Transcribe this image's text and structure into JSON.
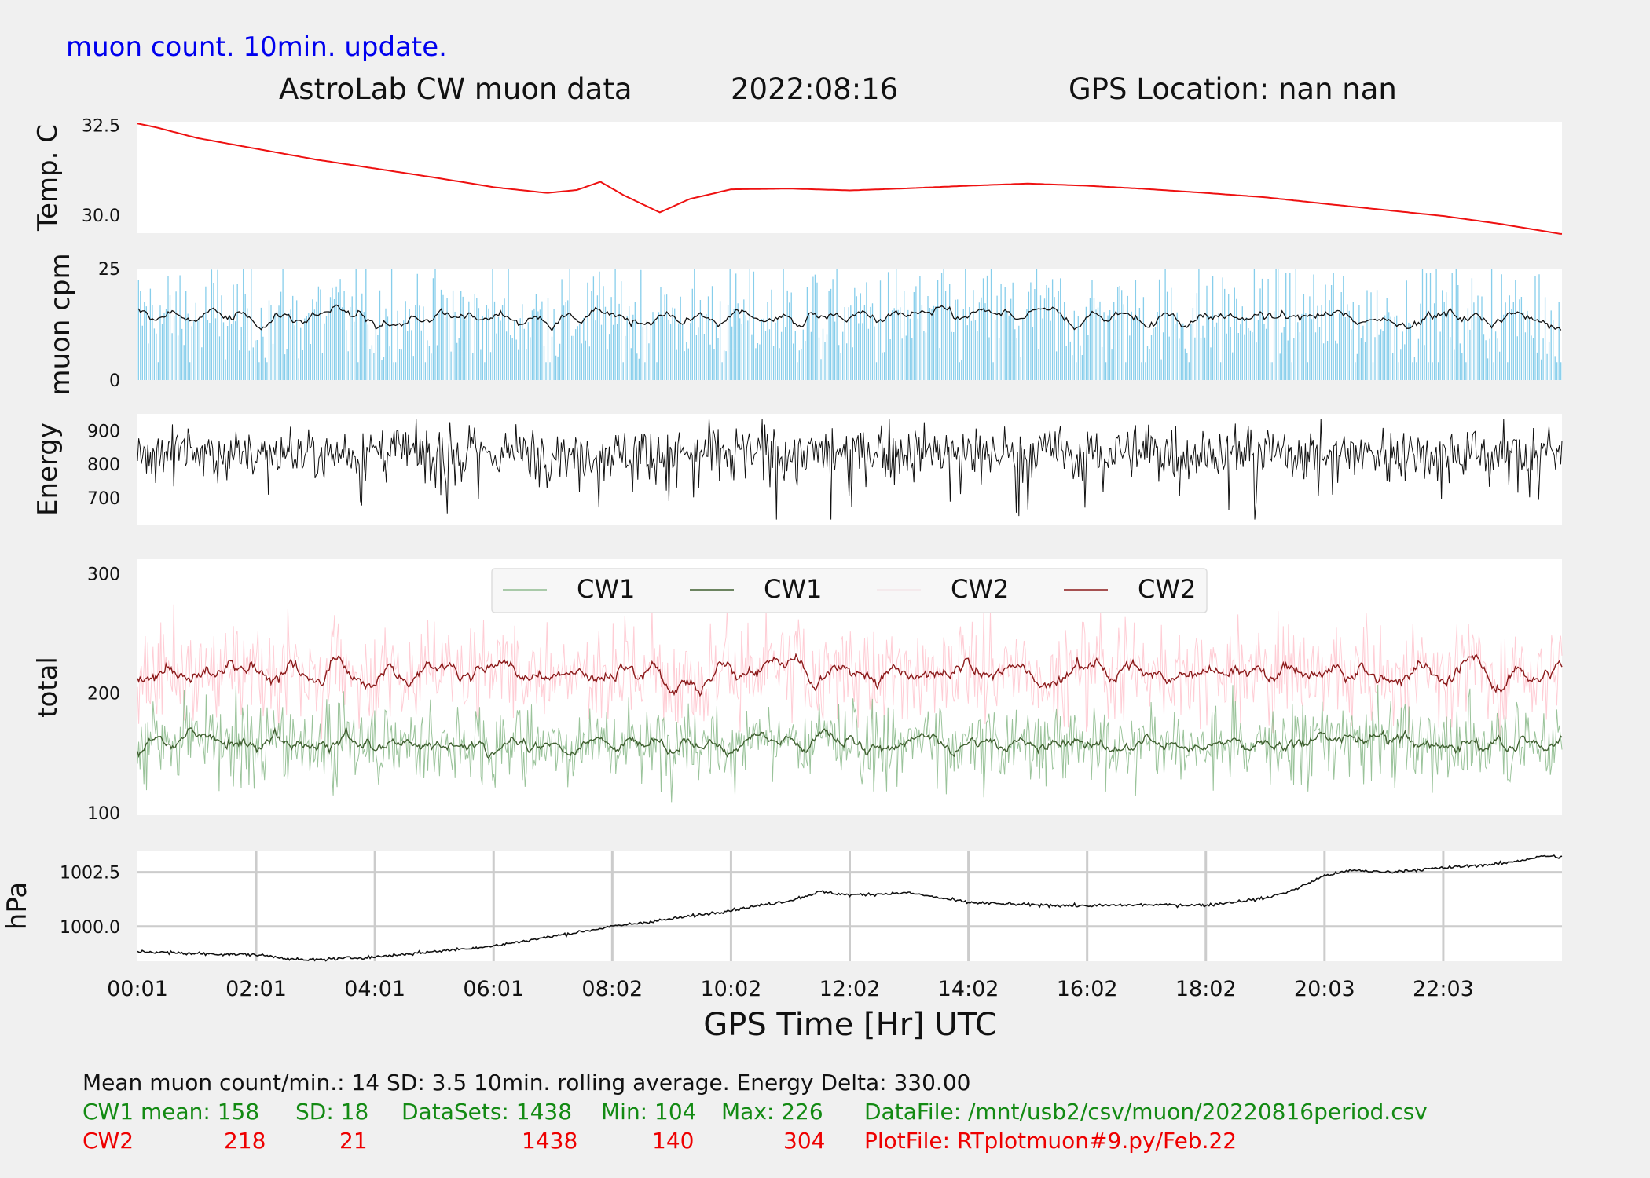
{
  "header": {
    "update_note": "muon count.  10min. update.",
    "title": "AstroLab CW muon data",
    "date": "2022:08:16",
    "gps_location": "GPS Location: nan   nan"
  },
  "colors": {
    "temperature": "#ee1111",
    "muon_bars": "#87ceeb",
    "muon_avg": "#111111",
    "energy": "#111111",
    "cw1_raw": "#8fbc8f",
    "cw1_avg": "#3f5f2f",
    "cw2_raw": "#ffc0cb",
    "cw2_avg": "#8b1a1a",
    "pressure": "#111111",
    "stats_black": "#111111",
    "stats_green": "#138a13",
    "stats_red": "#ee0000"
  },
  "chart_data": [
    {
      "type": "line",
      "name": "temperature",
      "ylabel": "Temp. C",
      "yticks": [
        "32.5",
        "30.0"
      ],
      "ytick_values": [
        32.5,
        30.0
      ],
      "ylim": [
        29.5,
        32.6
      ],
      "xlim": [
        0,
        24
      ],
      "x": [
        0,
        0.3,
        1,
        2,
        3,
        4,
        5,
        6,
        6.9,
        7.4,
        7.8,
        8.2,
        8.8,
        9.3,
        10,
        11,
        12,
        13,
        14,
        15,
        16,
        17,
        18,
        19,
        20,
        21,
        22,
        23,
        23.98
      ],
      "y": [
        32.55,
        32.45,
        32.15,
        31.85,
        31.55,
        31.3,
        31.05,
        30.78,
        30.62,
        30.7,
        30.93,
        30.55,
        30.08,
        30.45,
        30.72,
        30.74,
        30.69,
        30.75,
        30.82,
        30.88,
        30.82,
        30.73,
        30.62,
        30.5,
        30.32,
        30.15,
        29.98,
        29.75,
        29.48
      ]
    },
    {
      "type": "bar",
      "name": "muon cpm",
      "ylabel": "muon cpm",
      "yticks": [
        "25",
        "0"
      ],
      "ytick_values": [
        25,
        0
      ],
      "ylim": [
        0,
        25
      ],
      "xlim": [
        0,
        24
      ],
      "mean": 14,
      "sd": 3.5,
      "rolling_average_minutes": 10
    },
    {
      "type": "line",
      "name": "energy",
      "ylabel": "Energy",
      "yticks": [
        "900",
        "800",
        "700"
      ],
      "ytick_values": [
        900,
        800,
        700
      ],
      "ylim": [
        620,
        950
      ],
      "xlim": [
        0,
        24
      ]
    },
    {
      "type": "line",
      "name": "total",
      "ylabel": "total",
      "yticks": [
        "300",
        "200",
        "100"
      ],
      "ytick_values": [
        300,
        200,
        100
      ],
      "ylim": [
        98,
        312
      ],
      "xlim": [
        0,
        24
      ],
      "legend": [
        "CW1",
        "CW1",
        "CW2",
        "CW2"
      ],
      "legend_position": "top-center",
      "series": [
        {
          "name": "CW1",
          "style": "raw",
          "mean": 158,
          "sd": 18,
          "min": 104,
          "max": 226
        },
        {
          "name": "CW1",
          "style": "rolling-average",
          "mean": 158
        },
        {
          "name": "CW2",
          "style": "raw",
          "mean": 218,
          "sd": 21,
          "min": 140,
          "max": 304
        },
        {
          "name": "CW2",
          "style": "rolling-average",
          "mean": 218
        }
      ]
    },
    {
      "type": "line",
      "name": "pressure",
      "ylabel": "hPa",
      "yticks": [
        "1002.5",
        "1000.0"
      ],
      "ytick_values": [
        1002.5,
        1000.0
      ],
      "ylim": [
        998.4,
        1003.5
      ],
      "xlim": [
        0,
        24
      ],
      "grid": true,
      "xlabel": "GPS Time  [Hr] UTC",
      "xticks": [
        "00:01",
        "02:01",
        "04:01",
        "06:01",
        "08:02",
        "10:02",
        "12:02",
        "14:02",
        "16:02",
        "18:02",
        "20:03",
        "22:03"
      ],
      "xtick_values": [
        0.0,
        2.0,
        4.0,
        6.0,
        8.0,
        10.0,
        12.0,
        14.0,
        16.0,
        18.0,
        20.0,
        22.0
      ],
      "x": [
        0,
        1,
        2,
        2.8,
        4,
        5,
        6,
        7,
        8,
        9,
        10,
        11,
        11.5,
        12,
        13,
        14,
        15,
        16,
        17,
        18,
        19,
        19.5,
        20,
        20.5,
        21,
        22,
        23,
        23.7,
        23.98
      ],
      "y": [
        998.85,
        998.75,
        998.7,
        998.45,
        998.6,
        998.85,
        999.1,
        999.55,
        1000.0,
        1000.35,
        1000.75,
        1001.2,
        1001.6,
        1001.45,
        1001.55,
        1001.1,
        1001.0,
        1000.95,
        1001.0,
        1000.98,
        1001.3,
        1001.7,
        1002.35,
        1002.6,
        1002.5,
        1002.7,
        1002.9,
        1003.25,
        1003.2
      ]
    }
  ],
  "stats": {
    "line0": "Mean muon count/min.: 14  SD: 3.5   10min. rolling average.    Energy Delta:  330.00",
    "cw1_label": "CW1 mean: 158",
    "cw1_sd": "SD: 18",
    "cw1_datasets": "DataSets: 1438",
    "cw1_min": "Min: 104",
    "cw1_max": "Max: 226",
    "datafile": "DataFile: /mnt/usb2/csv/muon/20220816period.csv",
    "cw2_label": "CW2",
    "cw2_mean": "218",
    "cw2_sd": "21",
    "cw2_datasets": "1438",
    "cw2_min": "140",
    "cw2_max": "304",
    "plotfile": "PlotFile: RTplotmuon#9.py/Feb.22"
  }
}
